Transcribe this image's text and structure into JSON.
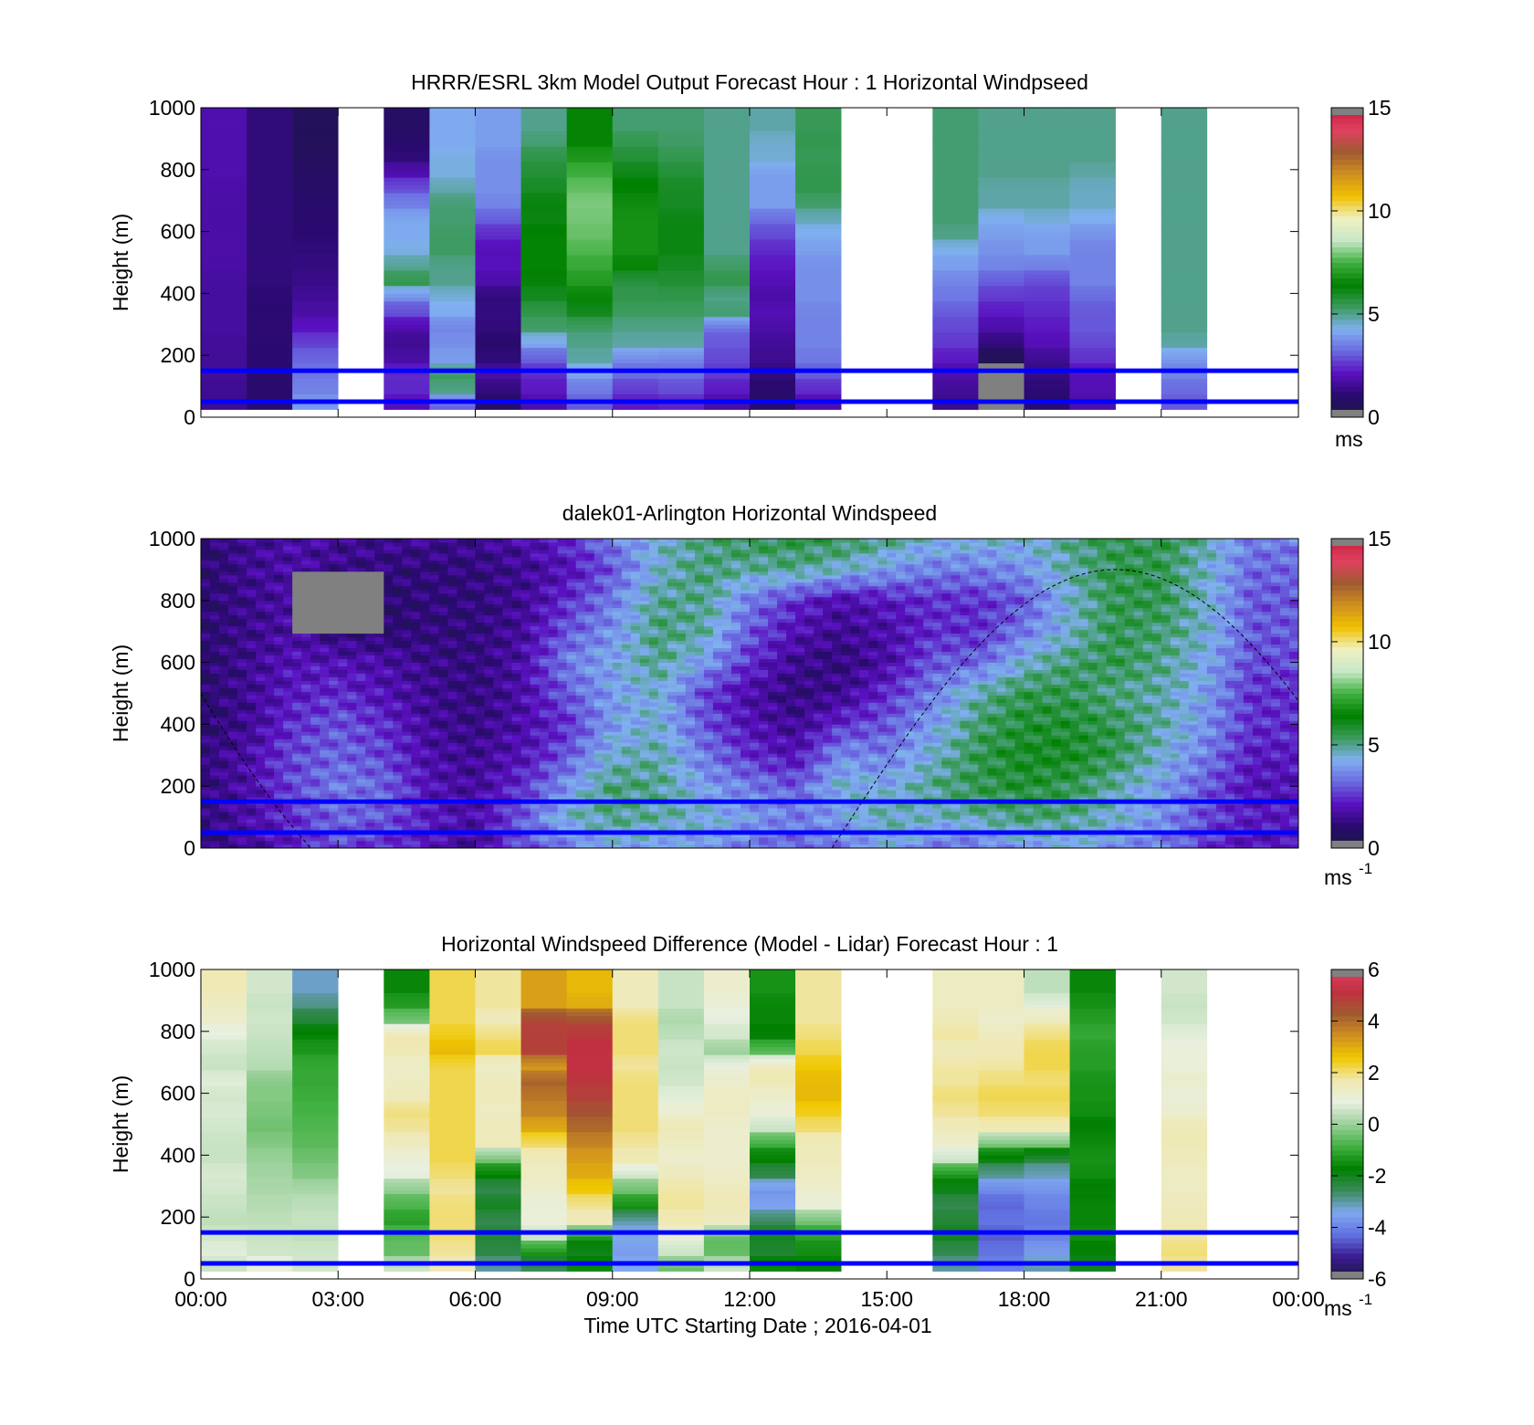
{
  "figure": {
    "xlabel": "Time UTC  Starting Date ; 2016-04-01",
    "xticks": [
      "00:00",
      "03:00",
      "06:00",
      "09:00",
      "12:00",
      "15:00",
      "18:00",
      "21:00",
      "00:00"
    ]
  },
  "colors": {
    "reference_lines": "#0000ff",
    "missing": "#808080",
    "speed_colormap": [
      "#1a1a40",
      "#2a0a70",
      "#5a10c0",
      "#6a6ae0",
      "#80b0f0",
      "#3a9a5a",
      "#008000",
      "#40b040",
      "#c8e8c8",
      "#f0f0c0",
      "#f0c000",
      "#d09020",
      "#a05a30",
      "#e04060",
      "#c81e3c"
    ],
    "diff_colormap": [
      "#1a1a40",
      "#3a1a90",
      "#6070e0",
      "#80a8f0",
      "#3a8a5a",
      "#008000",
      "#40b040",
      "#9ad09a",
      "#e8f0e0",
      "#f0e8b0",
      "#f0c800",
      "#d09020",
      "#a05a30",
      "#c03040",
      "#e04060"
    ]
  },
  "chart_data": [
    {
      "type": "heatmap",
      "title": "HRRR/ESRL 3km Model Output   Forecast Hour : 1 Horizontal Windpseed",
      "xlabel": "",
      "ylabel": "Height (m)",
      "ylim": [
        0,
        1000
      ],
      "yticks": [
        "0",
        "200",
        "400",
        "600",
        "800",
        "1000"
      ],
      "colorbar": {
        "range": [
          0,
          15
        ],
        "ticks": [
          "0",
          "5",
          "10",
          "15"
        ],
        "unit": "ms",
        "unit_sup": ""
      },
      "reference_lines_m": [
        50,
        150
      ],
      "column_hours": [
        0,
        1,
        2,
        3,
        4,
        5,
        6,
        7,
        8,
        9,
        10,
        11,
        12,
        13,
        14,
        15,
        16,
        17,
        18,
        19,
        20,
        21,
        22,
        23
      ],
      "levels_m": [
        50,
        100,
        150,
        200,
        250,
        300,
        350,
        400,
        450,
        500,
        550,
        600,
        650,
        700,
        750,
        800,
        850,
        900,
        950
      ],
      "profiles": [
        [
          1.5,
          1.5,
          1.6,
          1.6,
          1.6,
          1.7,
          1.7,
          1.7,
          1.7,
          1.8,
          1.8,
          1.8,
          1.8,
          1.8,
          1.8,
          1.9,
          1.9,
          1.9,
          1.9
        ],
        [
          1.0,
          1.0,
          1.0,
          1.1,
          1.1,
          1.1,
          1.1,
          1.1,
          1.2,
          1.2,
          1.2,
          1.2,
          1.2,
          1.2,
          1.2,
          1.2,
          1.2,
          1.2,
          1.2
        ],
        [
          4.0,
          3.6,
          3.4,
          3.2,
          2.8,
          2.2,
          1.8,
          1.6,
          1.4,
          1.3,
          1.2,
          1.1,
          1.0,
          1.0,
          0.9,
          0.8,
          0.7,
          0.6,
          0.6
        ],
        [],
        [
          2.0,
          2.4,
          2.5,
          1.8,
          1.5,
          1.8,
          2.8,
          3.6,
          5.5,
          5.0,
          4.4,
          4.2,
          4.2,
          3.6,
          3.0,
          2.0,
          1.2,
          1.0,
          0.8
        ],
        [
          3.0,
          5.0,
          5.4,
          4.0,
          3.8,
          3.6,
          4.2,
          4.4,
          5.0,
          5.0,
          5.3,
          5.3,
          5.2,
          5.2,
          4.8,
          4.4,
          4.4,
          4.2,
          4.2
        ],
        [
          0.8,
          1.2,
          1.8,
          1.2,
          1.0,
          1.2,
          1.3,
          1.2,
          1.8,
          2.1,
          2.0,
          2.4,
          3.0,
          3.6,
          3.8,
          3.8,
          3.8,
          4.0,
          4.0
        ],
        [
          1.8,
          2.2,
          2.4,
          3.0,
          4.0,
          5.2,
          5.5,
          6.0,
          6.3,
          6.5,
          6.5,
          6.5,
          6.2,
          6.3,
          6.0,
          5.8,
          5.6,
          5.2,
          5.0
        ],
        [
          3.0,
          3.4,
          4.0,
          4.8,
          5.0,
          5.2,
          6.0,
          6.5,
          7.0,
          7.3,
          7.6,
          7.8,
          7.9,
          8.0,
          7.8,
          7.5,
          7.0,
          6.5,
          6.5
        ],
        [
          2.2,
          2.6,
          3.2,
          3.6,
          4.8,
          5.0,
          5.3,
          5.5,
          5.6,
          6.5,
          6.8,
          6.8,
          6.8,
          6.7,
          6.5,
          6.2,
          5.8,
          5.5,
          5.2
        ],
        [
          2.3,
          2.8,
          3.3,
          3.5,
          4.8,
          5.0,
          5.3,
          5.5,
          5.8,
          6.0,
          6.2,
          6.2,
          6.2,
          6.0,
          6.0,
          5.8,
          5.5,
          5.3,
          5.2
        ],
        [
          1.7,
          2.2,
          2.6,
          2.8,
          3.0,
          3.2,
          5.2,
          5.0,
          5.5,
          5.3,
          5.0,
          5.0,
          5.0,
          5.0,
          5.0,
          5.0,
          5.0,
          5.0,
          5.0
        ],
        [
          0.9,
          1.0,
          1.2,
          1.5,
          1.6,
          1.8,
          2.0,
          1.8,
          2.0,
          2.2,
          2.4,
          2.8,
          3.2,
          4.0,
          4.0,
          4.0,
          4.5,
          4.5,
          4.8
        ],
        [
          1.8,
          2.4,
          3.0,
          3.4,
          3.6,
          3.6,
          3.6,
          3.8,
          3.8,
          3.8,
          4.0,
          4.2,
          4.6,
          5.2,
          5.5,
          5.5,
          5.4,
          5.5,
          5.4
        ],
        [],
        [],
        [
          1.4,
          1.6,
          1.8,
          2.2,
          2.6,
          2.8,
          3.0,
          3.4,
          3.6,
          4.0,
          4.2,
          5.0,
          5.2,
          5.2,
          5.2,
          5.2,
          5.2,
          5.2,
          5.2
        ],
        [
          -1,
          -1,
          -1,
          0.4,
          1.2,
          1.8,
          2.2,
          2.6,
          3.0,
          3.6,
          3.8,
          4.0,
          4.2,
          4.8,
          4.8,
          5.0,
          5.0,
          5.0,
          5.0
        ],
        [
          1.0,
          1.1,
          1.3,
          1.5,
          2.0,
          2.2,
          2.4,
          2.6,
          2.8,
          3.5,
          4.0,
          4.0,
          4.4,
          4.8,
          4.8,
          5.0,
          5.0,
          5.0,
          5.0
        ],
        [
          1.8,
          2.0,
          2.0,
          2.5,
          2.8,
          3.0,
          3.0,
          3.2,
          3.6,
          3.6,
          3.6,
          3.8,
          4.2,
          4.6,
          4.6,
          4.8,
          5.0,
          5.0,
          5.0
        ],
        [],
        [
          3.0,
          3.2,
          3.6,
          3.8,
          4.8,
          5.0,
          5.0,
          5.0,
          5.0,
          5.0,
          5.0,
          5.0,
          5.0,
          5.0,
          5.0,
          5.0,
          5.0,
          5.0,
          5.0
        ],
        [],
        []
      ]
    },
    {
      "type": "heatmap",
      "title": "dalek01-Arlington  Horizontal Windspeed",
      "xlabel": "",
      "ylabel": "Height (m)",
      "ylim": [
        0,
        1000
      ],
      "yticks": [
        "0",
        "200",
        "400",
        "600",
        "800",
        "1000"
      ],
      "colorbar": {
        "range": [
          0,
          15
        ],
        "ticks": [
          "0",
          "5",
          "10",
          "15"
        ],
        "unit": "ms",
        "unit_sup": "-1"
      },
      "reference_lines_m": [
        50,
        150
      ],
      "time_hours": [
        0,
        1,
        2,
        3,
        4,
        5,
        6,
        7,
        8,
        9,
        10,
        11,
        12,
        13,
        14,
        15,
        16,
        17,
        18,
        19,
        20,
        21,
        22,
        23
      ],
      "height_grid_m": [
        0,
        100,
        200,
        300,
        400,
        500,
        600,
        700,
        800,
        900,
        1000
      ],
      "speed_grid": [
        [
          1.0,
          1.5,
          2.2,
          2.8,
          2.5,
          2.0,
          1.5,
          2.8,
          3.5,
          4.0,
          4.2,
          3.8,
          3.5,
          3.0,
          3.5,
          4.2,
          3.5,
          3.2,
          4.0,
          4.2,
          3.8,
          3.5,
          2.5,
          2.0
        ],
        [
          1.2,
          1.8,
          2.5,
          3.2,
          3.0,
          2.2,
          1.8,
          3.0,
          4.5,
          5.0,
          4.8,
          4.5,
          4.0,
          3.5,
          4.0,
          4.8,
          4.5,
          4.8,
          5.2,
          5.0,
          4.5,
          3.8,
          2.8,
          2.2
        ],
        [
          1.2,
          1.8,
          2.8,
          3.5,
          3.2,
          2.0,
          1.6,
          2.5,
          3.8,
          5.2,
          5.0,
          4.0,
          3.5,
          3.0,
          4.5,
          4.2,
          5.0,
          5.5,
          5.8,
          5.5,
          4.8,
          4.0,
          3.0,
          2.0
        ],
        [
          1.2,
          1.8,
          2.8,
          3.2,
          2.8,
          1.8,
          1.5,
          2.0,
          3.0,
          4.5,
          4.8,
          3.5,
          2.5,
          2.0,
          3.8,
          3.5,
          4.5,
          5.5,
          6.0,
          6.0,
          5.5,
          4.5,
          3.5,
          2.2
        ],
        [
          1.0,
          1.5,
          2.5,
          3.0,
          2.5,
          1.6,
          1.3,
          1.8,
          2.5,
          4.0,
          4.5,
          3.0,
          2.0,
          1.5,
          2.5,
          3.0,
          4.0,
          5.2,
          5.8,
          5.8,
          5.5,
          4.8,
          3.8,
          2.5
        ],
        [
          1.0,
          1.5,
          2.2,
          2.5,
          2.0,
          1.5,
          1.2,
          1.8,
          3.0,
          4.0,
          4.5,
          2.8,
          1.8,
          1.2,
          1.5,
          2.5,
          3.5,
          4.8,
          5.5,
          5.5,
          5.0,
          4.8,
          4.0,
          2.5
        ],
        [
          1.0,
          1.5,
          2.0,
          2.0,
          1.8,
          1.4,
          1.2,
          1.8,
          3.5,
          4.2,
          5.0,
          4.0,
          2.5,
          1.5,
          1.2,
          1.8,
          3.0,
          3.2,
          4.5,
          5.2,
          5.5,
          5.0,
          4.2,
          2.8
        ],
        [
          1.0,
          1.4,
          1.8,
          1.2,
          1.0,
          1.2,
          1.2,
          1.6,
          3.0,
          3.8,
          5.2,
          4.8,
          3.0,
          2.0,
          1.5,
          1.8,
          2.5,
          2.5,
          3.5,
          4.5,
          5.5,
          5.2,
          4.5,
          3.0
        ],
        [
          1.0,
          1.4,
          1.8,
          -1,
          1.0,
          1.2,
          1.2,
          1.5,
          2.5,
          3.5,
          5.0,
          5.0,
          3.5,
          2.5,
          1.8,
          2.2,
          2.5,
          2.5,
          3.0,
          4.5,
          5.5,
          5.5,
          4.5,
          3.0
        ],
        [
          1.0,
          1.5,
          1.8,
          1.4,
          1.2,
          1.2,
          1.2,
          1.5,
          2.0,
          3.0,
          4.5,
          5.2,
          4.8,
          5.0,
          4.5,
          4.0,
          3.5,
          3.5,
          3.8,
          4.8,
          5.5,
          5.5,
          4.5,
          3.2
        ],
        [
          1.0,
          1.5,
          1.8,
          1.6,
          1.5,
          1.5,
          1.5,
          1.8,
          2.5,
          3.5,
          4.5,
          5.0,
          5.5,
          5.5,
          5.5,
          5.0,
          4.5,
          4.5,
          4.5,
          5.0,
          5.5,
          5.5,
          4.8,
          3.5
        ]
      ],
      "annotation": "dashed curve"
    },
    {
      "type": "heatmap",
      "title": "Horizontal Windspeed Difference (Model - Lidar) Forecast Hour : 1",
      "xlabel": "Time UTC  Starting Date ; 2016-04-01",
      "ylabel": "Height (m)",
      "ylim": [
        0,
        1000
      ],
      "yticks": [
        "0",
        "200",
        "400",
        "600",
        "800",
        "1000"
      ],
      "colorbar": {
        "range": [
          -6,
          6
        ],
        "ticks": [
          "-6",
          "-4",
          "-2",
          "0",
          "2",
          "4",
          "6"
        ],
        "unit": "ms",
        "unit_sup": "-1"
      },
      "reference_lines_m": [
        50,
        150
      ],
      "column_hours": [
        0,
        1,
        2,
        3,
        4,
        5,
        6,
        7,
        8,
        9,
        10,
        11,
        12,
        13,
        14,
        15,
        16,
        17,
        18,
        19,
        20,
        21,
        22,
        23
      ],
      "levels_m": [
        50,
        100,
        150,
        200,
        250,
        300,
        350,
        400,
        450,
        500,
        550,
        600,
        650,
        700,
        750,
        800,
        850,
        900,
        950
      ],
      "profiles": [
        [
          0.5,
          0.8,
          0.6,
          0.4,
          0.5,
          0.6,
          0.7,
          0.5,
          0.5,
          0.6,
          0.7,
          0.6,
          0.8,
          0.5,
          0.6,
          0.8,
          1.2,
          1.4,
          1.6
        ],
        [
          1.0,
          0.6,
          0.5,
          0.4,
          0.3,
          0.2,
          0.1,
          0.0,
          -0.2,
          -0.4,
          -0.3,
          -0.2,
          -0.2,
          0.3,
          0.4,
          0.5,
          0.6,
          0.5,
          0.6
        ],
        [
          0.6,
          0.6,
          0.4,
          0.5,
          0.4,
          0.2,
          -0.2,
          -0.4,
          -0.6,
          -0.7,
          -0.8,
          -0.9,
          -1.0,
          -1.0,
          -1.3,
          -1.6,
          -2.2,
          -2.8,
          -3.2
        ],
        [],
        [
          0.6,
          -0.5,
          -0.6,
          -1.2,
          -0.8,
          -0.2,
          0.8,
          1.0,
          1.4,
          1.8,
          2.0,
          1.5,
          1.4,
          1.3,
          1.6,
          1.8,
          -0.3,
          -1.2,
          -1.6
        ],
        [
          1.6,
          1.8,
          2.0,
          2.0,
          2.0,
          1.8,
          2.0,
          2.2,
          2.2,
          2.2,
          2.2,
          2.2,
          2.2,
          2.2,
          2.8,
          2.5,
          2.2,
          2.2,
          2.2
        ],
        [
          -3.0,
          -2.4,
          -2.2,
          -2.5,
          -2.0,
          -2.5,
          -1.8,
          -0.5,
          1.5,
          1.5,
          1.4,
          1.5,
          1.5,
          1.2,
          2.2,
          2.0,
          1.5,
          1.8,
          1.8
        ],
        [
          -2.6,
          -1.5,
          0.5,
          1.0,
          1.0,
          1.2,
          1.4,
          1.5,
          2.0,
          3.0,
          3.6,
          3.8,
          4.2,
          3.2,
          4.8,
          4.8,
          4.8,
          3.2,
          3.2
        ],
        [
          -1.5,
          -2.0,
          -1.5,
          1.5,
          1.8,
          2.5,
          3.0,
          3.2,
          3.6,
          4.0,
          4.4,
          4.8,
          5.0,
          5.2,
          5.2,
          5.0,
          4.6,
          3.0,
          2.8
        ],
        [
          -3.4,
          -3.6,
          -3.4,
          -3.2,
          -1.5,
          -0.5,
          0.5,
          1.6,
          1.8,
          2.0,
          2.0,
          2.0,
          2.0,
          1.8,
          2.0,
          2.0,
          2.0,
          1.5,
          1.5
        ],
        [
          -0.5,
          0.5,
          1.0,
          1.6,
          1.8,
          1.8,
          1.5,
          1.2,
          1.4,
          1.6,
          1.2,
          0.8,
          0.6,
          0.5,
          0.6,
          0.4,
          0.2,
          0.5,
          0.5
        ],
        [
          0.6,
          -0.5,
          -0.6,
          1.4,
          1.6,
          1.5,
          1.3,
          1.2,
          1.2,
          1.2,
          1.4,
          1.4,
          1.2,
          1.0,
          0.0,
          0.6,
          0.8,
          1.0,
          1.2
        ],
        [
          -1.5,
          -2.2,
          -2.0,
          -2.5,
          -3.5,
          -3.8,
          -2.5,
          -1.8,
          -1.0,
          0.5,
          1.0,
          1.2,
          1.6,
          1.6,
          -0.5,
          -1.8,
          -1.6,
          -1.6,
          -1.4
        ],
        [
          -1.8,
          -1.5,
          -1.2,
          -0.5,
          1.0,
          1.2,
          1.4,
          1.5,
          1.5,
          2.0,
          2.4,
          2.8,
          2.8,
          2.6,
          2.2,
          2.0,
          1.8,
          1.8,
          1.8
        ],
        [],
        [],
        [
          -3.0,
          -2.5,
          -2.0,
          -2.2,
          -2.5,
          -2.0,
          -1.5,
          0.5,
          1.2,
          1.5,
          1.8,
          2.0,
          1.8,
          1.8,
          1.5,
          1.8,
          1.6,
          1.4,
          1.4
        ],
        [
          -4.0,
          -4.2,
          -4.5,
          -4.2,
          -4.4,
          -4.0,
          -3.0,
          -2.0,
          -0.5,
          1.6,
          2.0,
          2.2,
          2.0,
          1.8,
          1.6,
          1.5,
          1.2,
          1.4,
          1.4
        ],
        [
          -3.0,
          -3.6,
          -4.0,
          -4.2,
          -4.0,
          -3.8,
          -3.2,
          -2.5,
          -0.5,
          1.6,
          2.0,
          2.2,
          2.0,
          2.2,
          2.2,
          2.0,
          1.5,
          0.8,
          0.4
        ],
        [
          -2.0,
          -1.8,
          -1.5,
          -1.6,
          -1.6,
          -1.8,
          -1.5,
          -1.4,
          -1.5,
          -1.8,
          -1.5,
          -1.4,
          -1.4,
          -1.2,
          -1.2,
          -1.0,
          -1.2,
          -1.4,
          -1.6
        ],
        [],
        [
          1.8,
          2.0,
          1.8,
          1.6,
          1.5,
          1.4,
          1.4,
          1.5,
          1.6,
          1.6,
          1.2,
          1.0,
          1.2,
          1.0,
          1.0,
          0.8,
          0.6,
          0.5,
          0.6
        ],
        [],
        []
      ]
    }
  ]
}
